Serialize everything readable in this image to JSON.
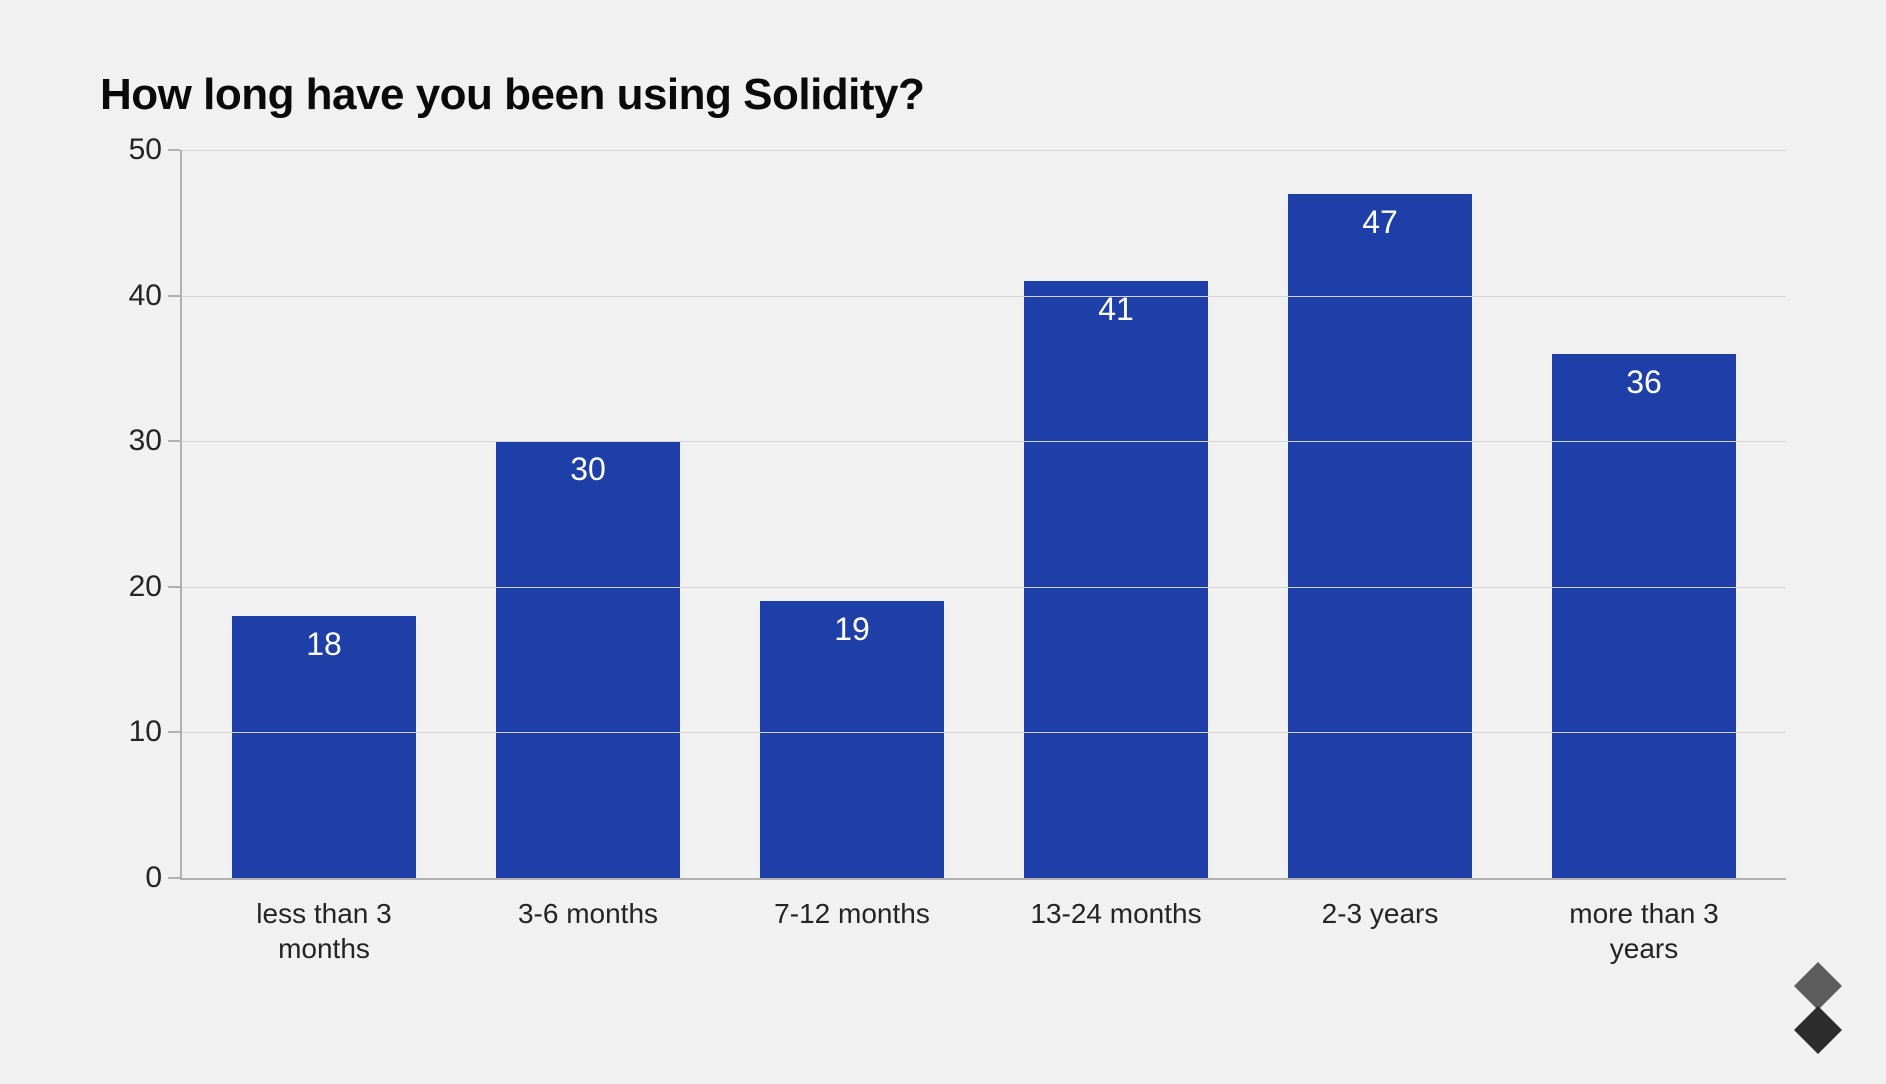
{
  "chart": {
    "type": "bar",
    "title": "How long have you been using Solidity?",
    "title_fontsize": 44,
    "title_fontweight": 800,
    "title_color": "#0a0a0a",
    "background_color": "#f1f1f1",
    "grid_color": "#d4d4d4",
    "axis_color": "#b0b0b0",
    "tick_label_color": "#242424",
    "tick_label_fontsize": 30,
    "x_label_fontsize": 28,
    "bar_color": "#1e3ea8",
    "bar_value_color": "#ffffff",
    "bar_value_fontsize": 32,
    "bar_width": 0.7,
    "ylim": [
      0,
      50
    ],
    "ytick_step": 10,
    "yticks": [
      0,
      10,
      20,
      30,
      40,
      50
    ],
    "categories": [
      "less than 3 months",
      "3-6 months",
      "7-12 months",
      "13-24 months",
      "2-3 years",
      "more than 3 years"
    ],
    "values": [
      18,
      30,
      19,
      41,
      47,
      36
    ]
  },
  "logo": {
    "name": "solidity-logo-icon",
    "top_color": "#5d5d5d",
    "bottom_color": "#2c2c2c"
  }
}
